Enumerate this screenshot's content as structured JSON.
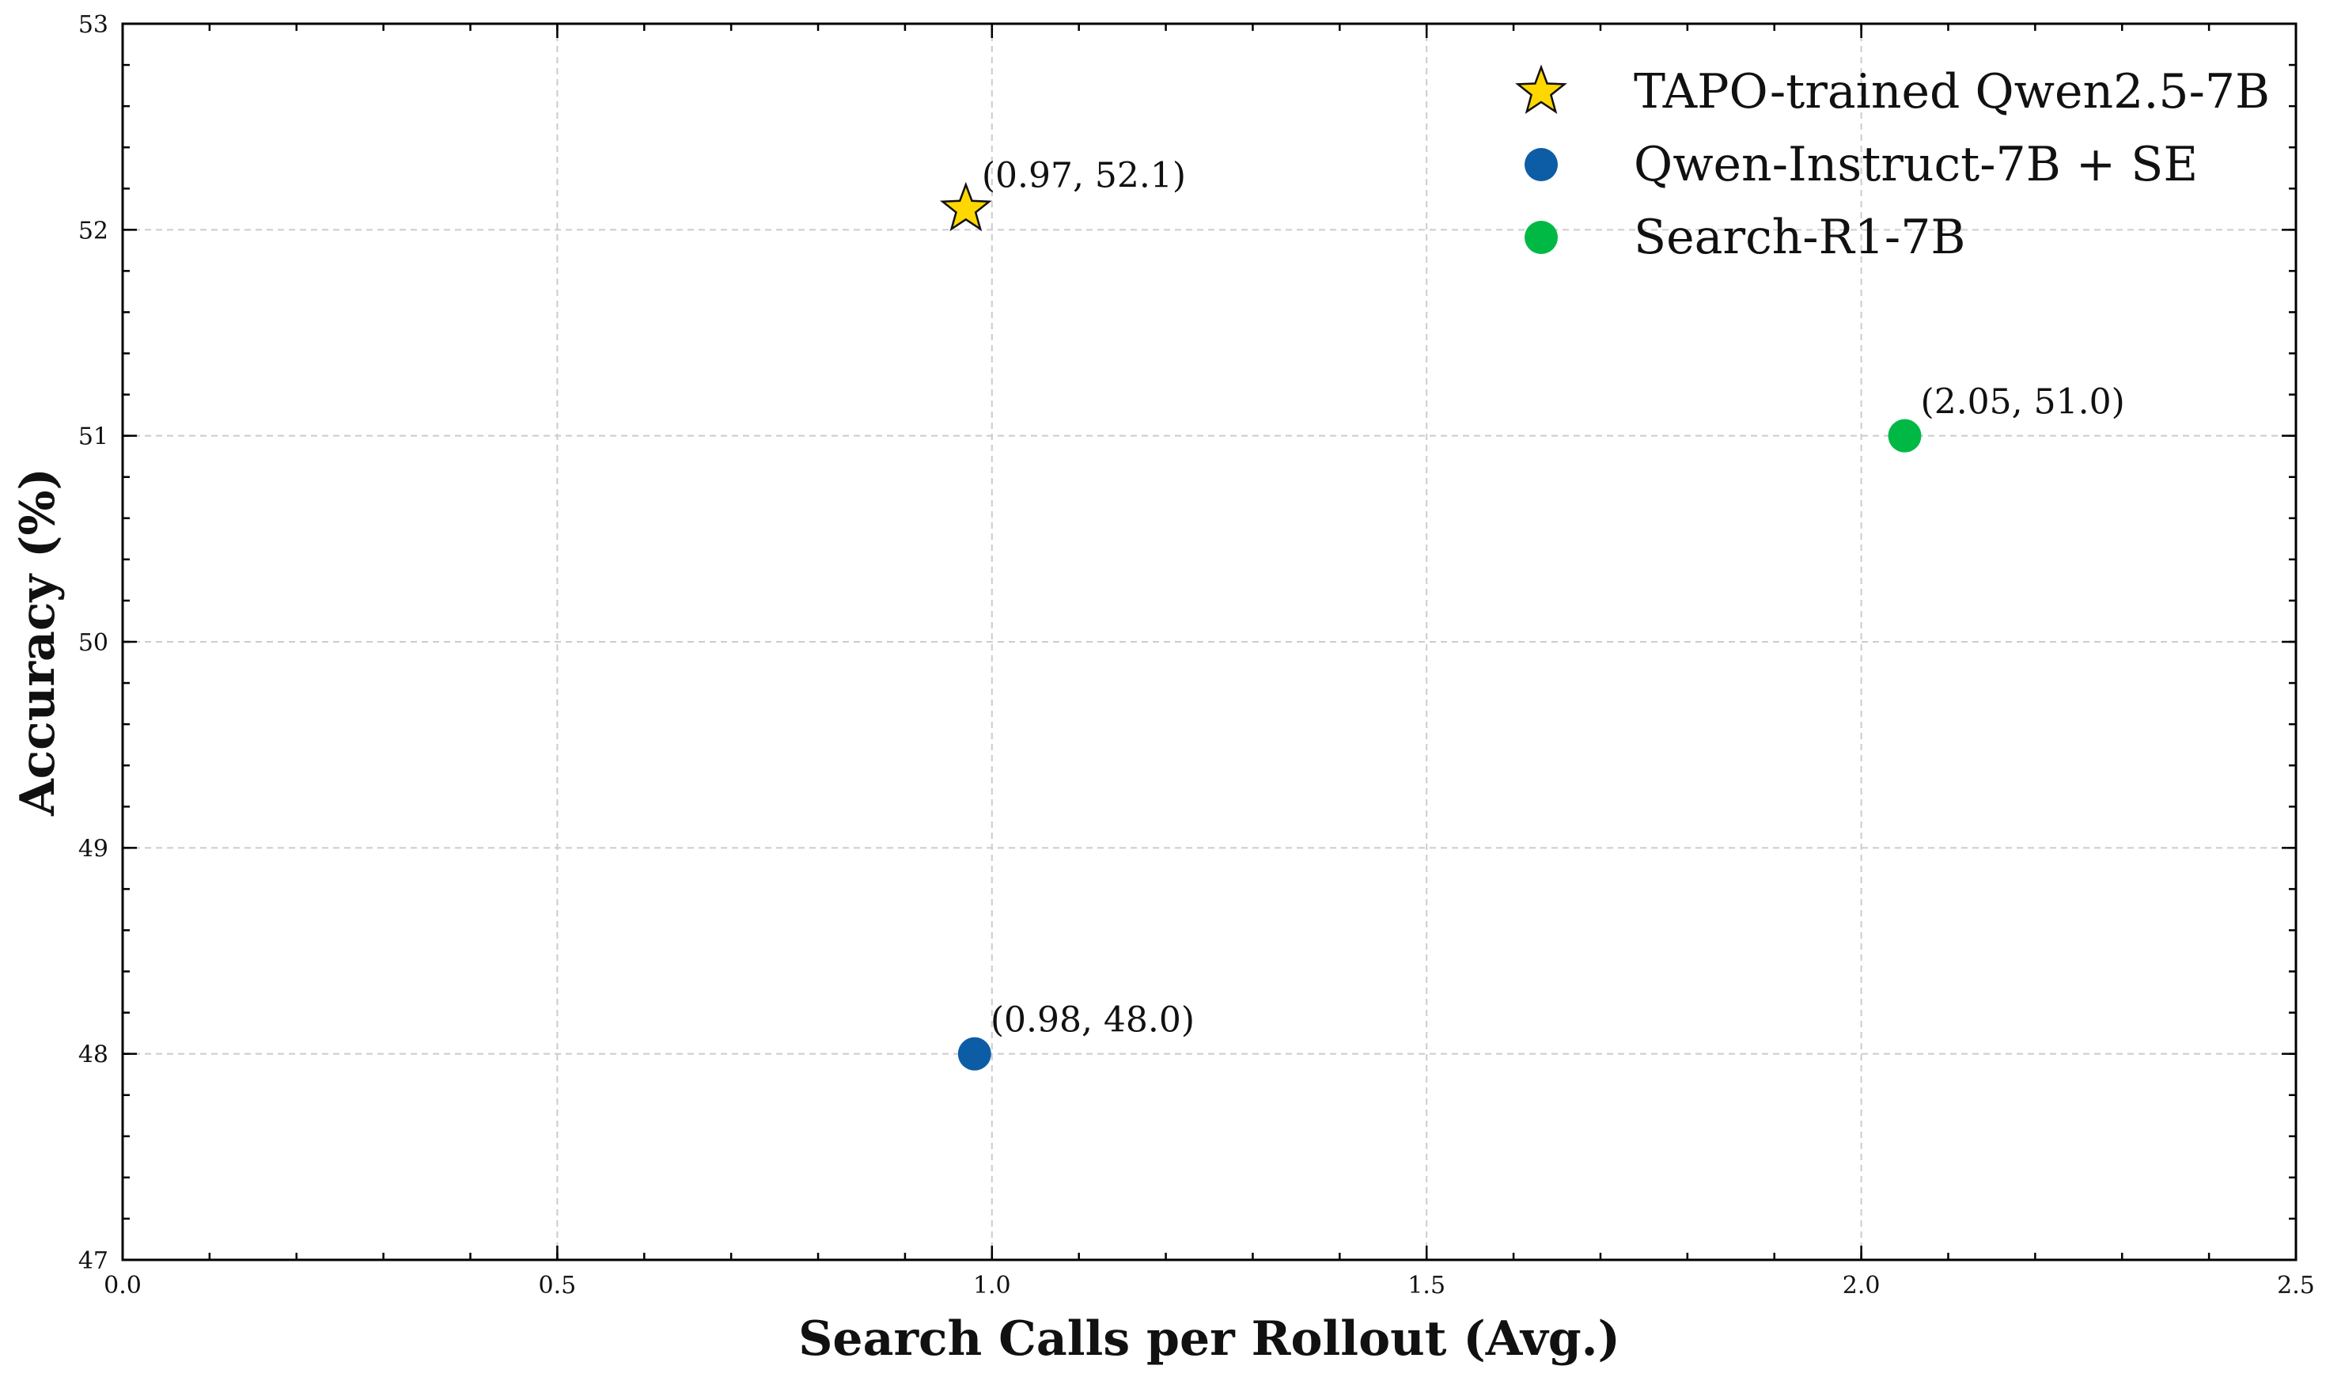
{
  "chart_data": {
    "type": "scatter",
    "xlabel": "Search Calls per Rollout (Avg.)",
    "ylabel": "Accuracy (%)",
    "xlim": [
      0.0,
      2.5
    ],
    "ylim": [
      47,
      53
    ],
    "xticks": [
      0.0,
      0.5,
      1.0,
      1.5,
      2.0,
      2.5
    ],
    "xtick_labels": [
      "0.0",
      "0.5",
      "1.0",
      "1.5",
      "2.0",
      "2.5"
    ],
    "yticks": [
      47,
      48,
      49,
      50,
      51,
      52,
      53
    ],
    "ytick_labels": [
      "47",
      "48",
      "49",
      "50",
      "51",
      "52",
      "53"
    ],
    "grid": true,
    "legend_position": "top-right",
    "series": [
      {
        "name": "TAPO-trained Qwen2.5-7B",
        "marker": "star",
        "color": "#FFD700",
        "x": [
          0.97
        ],
        "y": [
          52.1
        ],
        "annotations": [
          "(0.97, 52.1)"
        ]
      },
      {
        "name": "Qwen-Instruct-7B + SE",
        "marker": "circle",
        "color": "#0C5DA5",
        "x": [
          0.98
        ],
        "y": [
          48.0
        ],
        "annotations": [
          "(0.98, 48.0)"
        ]
      },
      {
        "name": "Search-R1-7B",
        "marker": "circle",
        "color": "#00B945",
        "x": [
          2.05
        ],
        "y": [
          51.0
        ],
        "annotations": [
          "(2.05, 51.0)"
        ]
      }
    ]
  }
}
